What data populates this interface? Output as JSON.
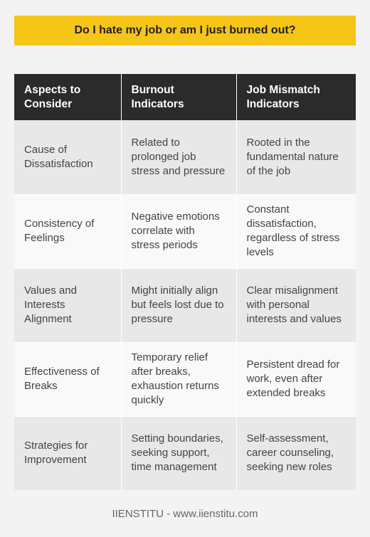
{
  "title": "Do I hate my job or am I just burned out?",
  "table": {
    "headers": [
      "Aspects to Consider",
      "Burnout Indicators",
      "Job Mismatch Indicators"
    ],
    "rows": [
      [
        "Cause of Dissatisfaction",
        "Related to prolonged job stress and pressure",
        "Rooted in the fundamental nature of the job"
      ],
      [
        "Consistency of Feelings",
        "Negative emotions correlate with stress periods",
        "Constant dissatisfaction, regardless of stress levels"
      ],
      [
        "Values and Interests Alignment",
        "Might initially align but feels lost due to pressure",
        "Clear misalignment with personal interests and values"
      ],
      [
        "Effectiveness of Breaks",
        "Temporary relief after breaks, exhaustion returns quickly",
        "Persistent dread for work, even after extended breaks"
      ],
      [
        "Strategies for Improvement",
        "Setting boundaries, seeking support, time management",
        "Self-assessment, career counseling, seeking new roles"
      ]
    ]
  },
  "footer": "IIENSTITU - www.iienstitu.com",
  "colors": {
    "title_bg": "#f5c518",
    "header_bg": "#2b2b2b",
    "row_odd": "#e8e8e8",
    "row_even": "#f9f9f9",
    "page_bg": "#f3f3f3"
  }
}
